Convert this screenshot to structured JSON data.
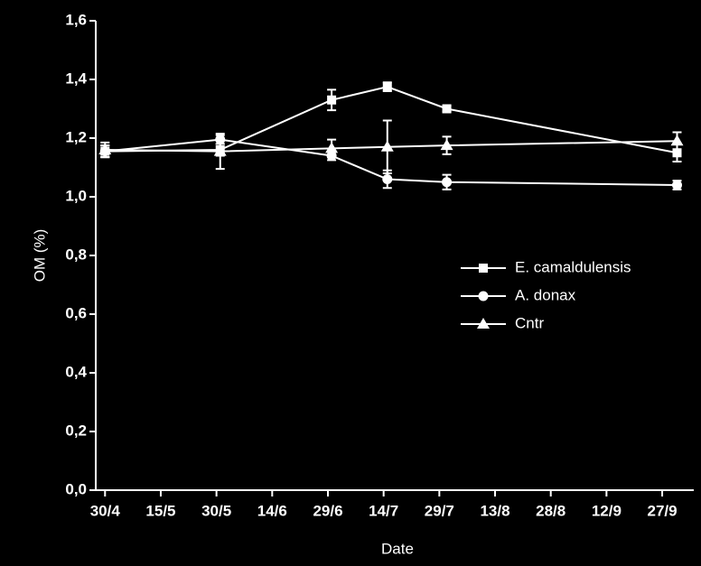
{
  "chart_data": {
    "type": "line",
    "x_label": "Date",
    "y_label": "OM (%)",
    "x": [
      120,
      151,
      181,
      196,
      212,
      274
    ],
    "xlim": [
      117.5,
      278.5
    ],
    "xticks": [
      {
        "value": 120,
        "label": "30/4"
      },
      {
        "value": 135,
        "label": "15/5"
      },
      {
        "value": 150,
        "label": "30/5"
      },
      {
        "value": 165,
        "label": "14/6"
      },
      {
        "value": 180,
        "label": "29/6"
      },
      {
        "value": 195,
        "label": "14/7"
      },
      {
        "value": 210,
        "label": "29/7"
      },
      {
        "value": 225,
        "label": "13/8"
      },
      {
        "value": 240,
        "label": "28/8"
      },
      {
        "value": 255,
        "label": "12/9"
      },
      {
        "value": 270,
        "label": "27/9"
      }
    ],
    "ylim": [
      0,
      1.6
    ],
    "yticks": [
      {
        "value": 0,
        "label": "0,0"
      },
      {
        "value": 0.2,
        "label": "0,2"
      },
      {
        "value": 0.4,
        "label": "0,4"
      },
      {
        "value": 0.6,
        "label": "0,6"
      },
      {
        "value": 0.8,
        "label": "0,8"
      },
      {
        "value": 1.0,
        "label": "1,0"
      },
      {
        "value": 1.2,
        "label": "1,2"
      },
      {
        "value": 1.4,
        "label": "1,4"
      },
      {
        "value": 1.6,
        "label": "1,6"
      }
    ],
    "series": [
      {
        "name": "E. camaldulensis",
        "color": "#ffffff",
        "marker": "square",
        "values": [
          1.155,
          1.16,
          1.33,
          1.375,
          1.3,
          1.15
        ],
        "errors": [
          0.02,
          0.02,
          0.035,
          0.015,
          0.01,
          0.03
        ]
      },
      {
        "name": "A. donax",
        "color": "#ffffff",
        "marker": "circle",
        "values": [
          1.155,
          1.195,
          1.14,
          1.06,
          1.05,
          1.04
        ],
        "errors": [
          0.02,
          0.015,
          0.015,
          0.03,
          0.025,
          0.015
        ]
      },
      {
        "name": "Cntr",
        "color": "#ffffff",
        "marker": "triangle",
        "values": [
          1.16,
          1.155,
          1.165,
          1.17,
          1.175,
          1.19
        ],
        "errors": [
          0.025,
          0.06,
          0.03,
          0.09,
          0.03,
          0.03
        ]
      }
    ]
  }
}
